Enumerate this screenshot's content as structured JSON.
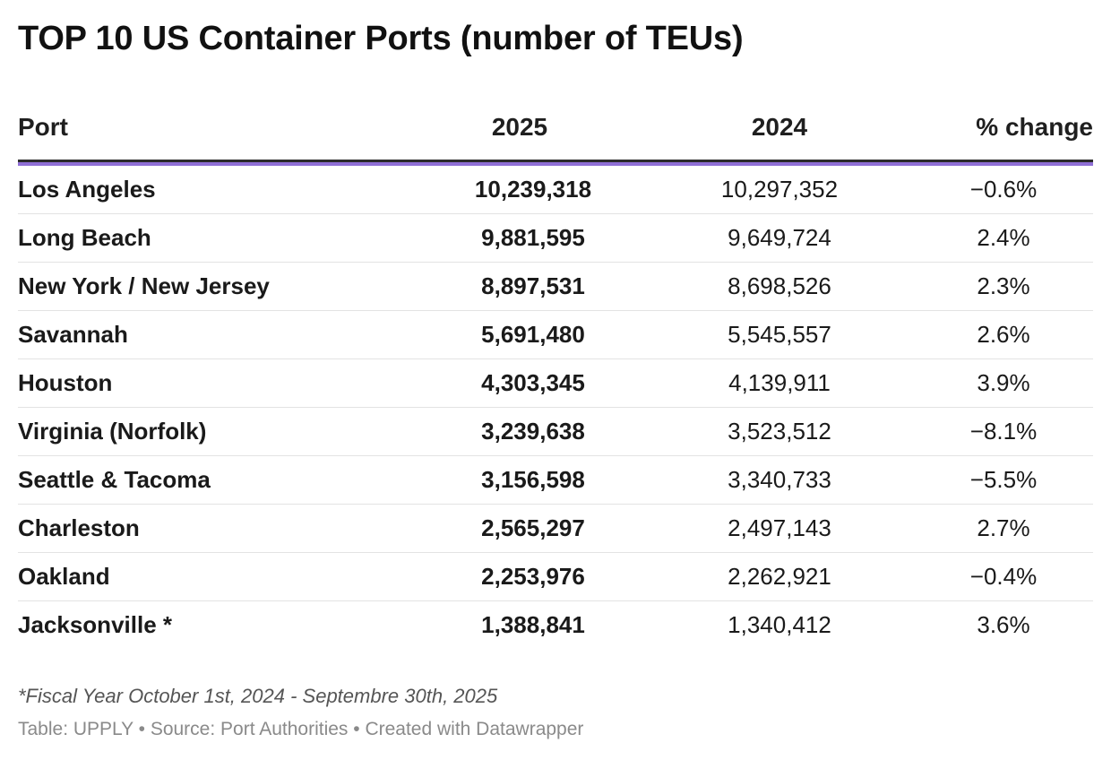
{
  "title": "TOP 10 US Container Ports (number of TEUs)",
  "accent_color": "#8f6fd6",
  "chart_data": {
    "type": "table",
    "title": "TOP 10 US Container Ports (number of TEUs)",
    "columns": [
      "Port",
      "2025",
      "2024",
      "% change"
    ],
    "rows": [
      {
        "port": "Los Angeles",
        "v2025": "10,239,318",
        "v2024": "10,297,352",
        "change": "−0.6%"
      },
      {
        "port": "Long Beach",
        "v2025": "9,881,595",
        "v2024": "9,649,724",
        "change": "2.4%"
      },
      {
        "port": "New York / New Jersey",
        "v2025": "8,897,531",
        "v2024": "8,698,526",
        "change": "2.3%"
      },
      {
        "port": "Savannah",
        "v2025": "5,691,480",
        "v2024": "5,545,557",
        "change": "2.6%"
      },
      {
        "port": "Houston",
        "v2025": "4,303,345",
        "v2024": "4,139,911",
        "change": "3.9%"
      },
      {
        "port": "Virginia (Norfolk)",
        "v2025": "3,239,638",
        "v2024": "3,523,512",
        "change": "−8.1%"
      },
      {
        "port": "Seattle & Tacoma",
        "v2025": "3,156,598",
        "v2024": "3,340,733",
        "change": "−5.5%"
      },
      {
        "port": "Charleston",
        "v2025": "2,565,297",
        "v2024": "2,497,143",
        "change": "2.7%"
      },
      {
        "port": "Oakland",
        "v2025": "2,253,976",
        "v2024": "2,262,921",
        "change": "−0.4%"
      },
      {
        "port": "Jacksonville *",
        "v2025": "1,388,841",
        "v2024": "1,340,412",
        "change": "3.6%"
      }
    ]
  },
  "footnote": "*Fiscal Year October 1st, 2024 - Septembre 30th, 2025",
  "source_line": "Table: UPPLY • Source: Port Authorities • Created with Datawrapper"
}
